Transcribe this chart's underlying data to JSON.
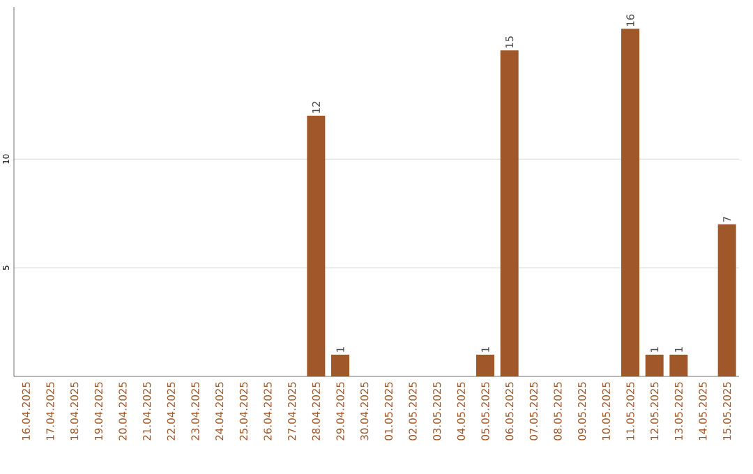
{
  "chart_data": {
    "type": "bar",
    "categories": [
      "16.04.2025",
      "17.04.2025",
      "18.04.2025",
      "19.04.2025",
      "20.04.2025",
      "21.04.2025",
      "22.04.2025",
      "23.04.2025",
      "24.04.2025",
      "25.04.2025",
      "26.04.2025",
      "27.04.2025",
      "28.04.2025",
      "29.04.2025",
      "30.04.2025",
      "01.05.2025",
      "02.05.2025",
      "03.05.2025",
      "04.05.2025",
      "05.05.2025",
      "06.05.2025",
      "07.05.2025",
      "08.05.2025",
      "09.05.2025",
      "10.05.2025",
      "11.05.2025",
      "12.05.2025",
      "13.05.2025",
      "14.05.2025",
      "15.05.2025"
    ],
    "values": [
      0,
      0,
      0,
      0,
      0,
      0,
      0,
      0,
      0,
      0,
      0,
      0,
      12,
      1,
      0,
      0,
      0,
      0,
      0,
      1,
      15,
      0,
      0,
      0,
      0,
      16,
      1,
      1,
      0,
      7
    ],
    "value_labels": [
      null,
      null,
      null,
      null,
      null,
      null,
      null,
      null,
      null,
      null,
      null,
      null,
      "12",
      "1",
      null,
      null,
      null,
      null,
      null,
      "1",
      "15",
      null,
      null,
      null,
      null,
      "16",
      "1",
      "1",
      null,
      "7"
    ],
    "color": "#a0582a",
    "ylim": [
      0,
      17
    ],
    "yticks": [
      5,
      10
    ],
    "grid": "y"
  }
}
